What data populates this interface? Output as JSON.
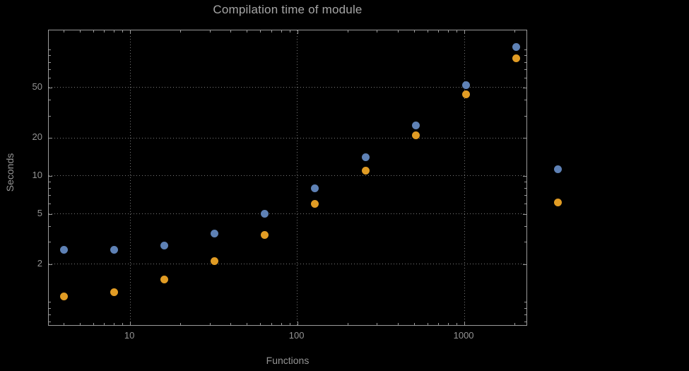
{
  "page": {
    "background": "#000000"
  },
  "chart_data": {
    "type": "scatter",
    "title": "Compilation time of module",
    "xlabel": "Functions",
    "ylabel": "Seconds",
    "x_scale": "log",
    "y_scale": "log",
    "xlim": [
      3.26,
      2400
    ],
    "ylim": [
      0.64,
      142
    ],
    "grid": {
      "style": "dotted",
      "color": "#787878"
    },
    "frame_color": "#9a9a9a",
    "text_color": "#949494",
    "x": [
      4,
      8,
      16,
      32,
      64,
      128,
      256,
      512,
      1024,
      2048
    ],
    "series": [
      {
        "label": "",
        "color": "#5e81b5",
        "values": [
          2.6,
          2.6,
          2.8,
          3.5,
          5.0,
          8.0,
          14,
          25,
          52,
          105
        ]
      },
      {
        "label": "",
        "color": "#e19c24",
        "values": [
          1.1,
          1.2,
          1.5,
          2.1,
          3.4,
          6.0,
          11,
          21,
          44,
          85
        ]
      }
    ],
    "x_ticks": {
      "values": [
        10,
        100,
        1000
      ],
      "labels": [
        "10",
        "100",
        "1000"
      ]
    },
    "y_ticks": {
      "values": [
        2,
        5,
        10,
        20,
        50
      ],
      "labels": [
        "2",
        "5",
        "10",
        "20",
        "50"
      ]
    },
    "legend_position": "right",
    "legend": [
      {
        "label": "",
        "color": "#5e81b5"
      },
      {
        "label": "",
        "color": "#e19c24"
      }
    ]
  }
}
